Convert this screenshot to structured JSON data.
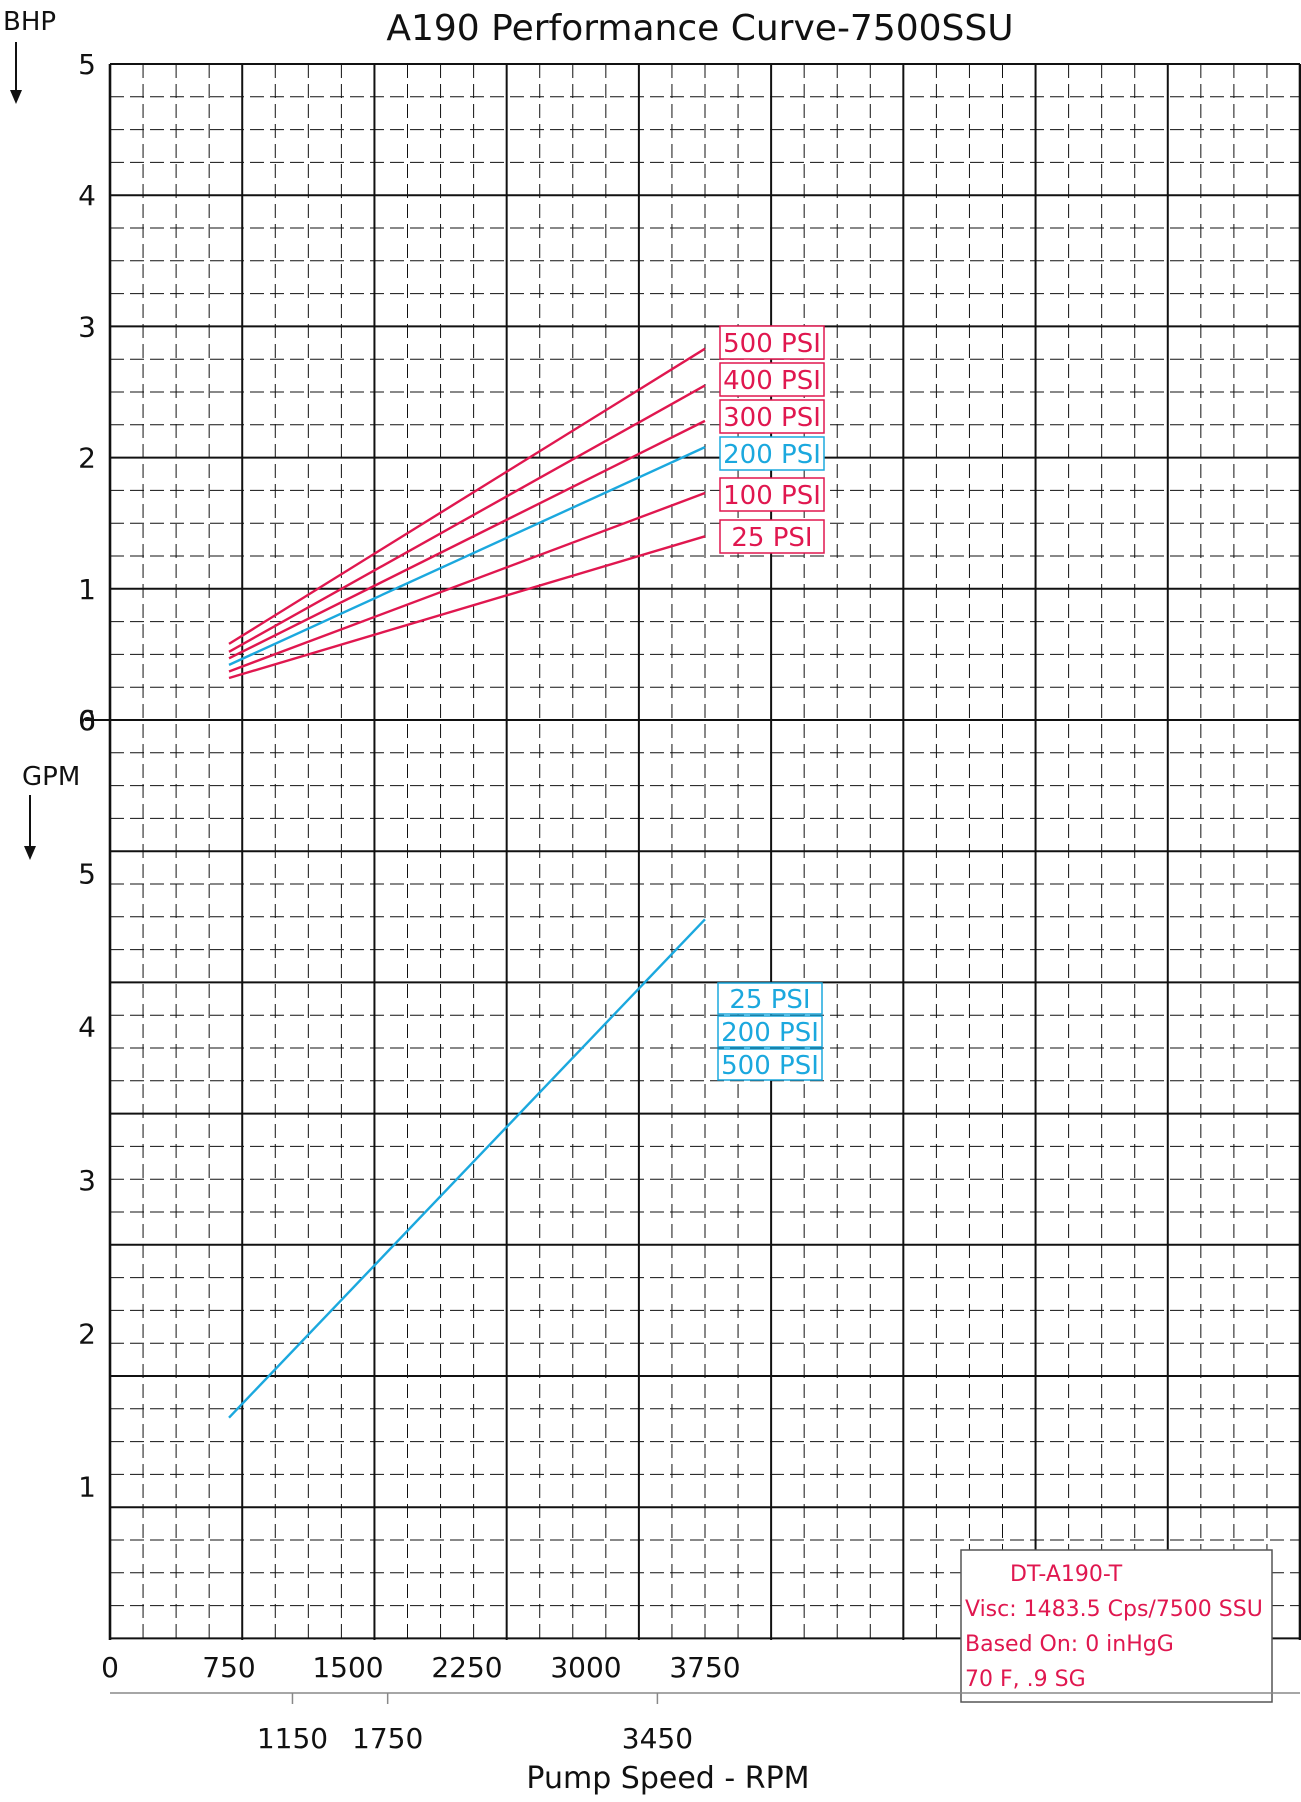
{
  "chart_data": [
    {
      "type": "line",
      "title": "A190 Performance Curve-7500SSU",
      "ylabel": "BHP",
      "ylim": [
        0,
        5
      ],
      "yticks": [
        "0",
        "1",
        "2",
        "3",
        "4",
        "5"
      ],
      "series": [
        {
          "name": "500 PSI",
          "color": "#e0174f",
          "x": [
            750,
            3750
          ],
          "y": [
            0.58,
            2.83
          ]
        },
        {
          "name": "400 PSI",
          "color": "#e0174f",
          "x": [
            750,
            3750
          ],
          "y": [
            0.52,
            2.55
          ]
        },
        {
          "name": "300 PSI",
          "color": "#e0174f",
          "x": [
            750,
            3750
          ],
          "y": [
            0.47,
            2.28
          ]
        },
        {
          "name": "200 PSI",
          "color": "#1ba8de",
          "x": [
            750,
            3750
          ],
          "y": [
            0.42,
            2.08
          ]
        },
        {
          "name": "100 PSI",
          "color": "#e0174f",
          "x": [
            750,
            3750
          ],
          "y": [
            0.37,
            1.73
          ]
        },
        {
          "name": "25 PSI",
          "color": "#e0174f",
          "x": [
            750,
            3750
          ],
          "y": [
            0.32,
            1.4
          ]
        }
      ]
    },
    {
      "type": "line",
      "ylabel": "GPM",
      "ylim": [
        0,
        6
      ],
      "yticks": [
        "1",
        "2",
        "3",
        "4",
        "5",
        "6"
      ],
      "series": [
        {
          "name": "25 PSI / 200 PSI / 500 PSI",
          "color": "#1ba8de",
          "x": [
            750,
            3750
          ],
          "y": [
            1.45,
            4.7
          ]
        }
      ]
    }
  ],
  "x_axis": {
    "label": "Pump Speed - RPM",
    "range": [
      0,
      7500
    ],
    "tick_labels": [
      "0",
      "750",
      "1500",
      "2250",
      "3000",
      "3750"
    ],
    "secondary_tick_labels": [
      "1150",
      "1750",
      "3450"
    ]
  },
  "bhp_labels": [
    "500 PSI",
    "400 PSI",
    "300 PSI",
    "200 PSI",
    "100 PSI",
    "25 PSI"
  ],
  "gpm_labels": [
    "25 PSI",
    "200 PSI",
    "500 PSI"
  ],
  "info_box": {
    "line1": "DT-A190-T",
    "line2": "Visc: 1483.5 Cps/7500 SSU",
    "line3": "Based On: 0 inHgG",
    "line4": "70 F, .9 SG"
  },
  "colors": {
    "red": "#e0174f",
    "blue": "#1ba8de",
    "grid": "#111111"
  }
}
